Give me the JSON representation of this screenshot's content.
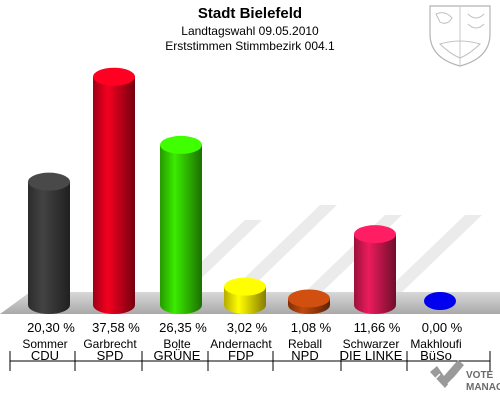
{
  "header": {
    "title": "Stadt Bielefeld",
    "subtitle1": "Landtagswahl 09.05.2010",
    "subtitle2": "Erststimmen Stimmbezirk 004.1"
  },
  "chart_data": {
    "type": "bar",
    "title": "Stadt Bielefeld",
    "subtitle": [
      "Landtagswahl 09.05.2010",
      "Erststimmen Stimmbezirk 004.1"
    ],
    "categories": [
      "CDU",
      "SPD",
      "GRÜNE",
      "FDP",
      "NPD",
      "DIE LINKE",
      "BüSo"
    ],
    "candidates": [
      "Sommer",
      "Garbrecht",
      "Bolte",
      "Andernacht",
      "Reball",
      "Schwarzer",
      "Makhloufi"
    ],
    "values": [
      20.3,
      37.58,
      26.35,
      3.02,
      1.08,
      11.66,
      0.0
    ],
    "value_labels": [
      "20,30 %",
      "37,58 %",
      "26,35 %",
      "3,02 %",
      "1,08 %",
      "11,66 %",
      "0,00 %"
    ],
    "colors": [
      "#3a3a3a",
      "#d4001c",
      "#33cc00",
      "#f4e400",
      "#a8400c",
      "#cc1850",
      "#0000ee"
    ],
    "ylim": [
      0,
      40
    ]
  },
  "logo": {
    "brand_line1": "VOTE",
    "brand_line2": "MANAGER"
  }
}
